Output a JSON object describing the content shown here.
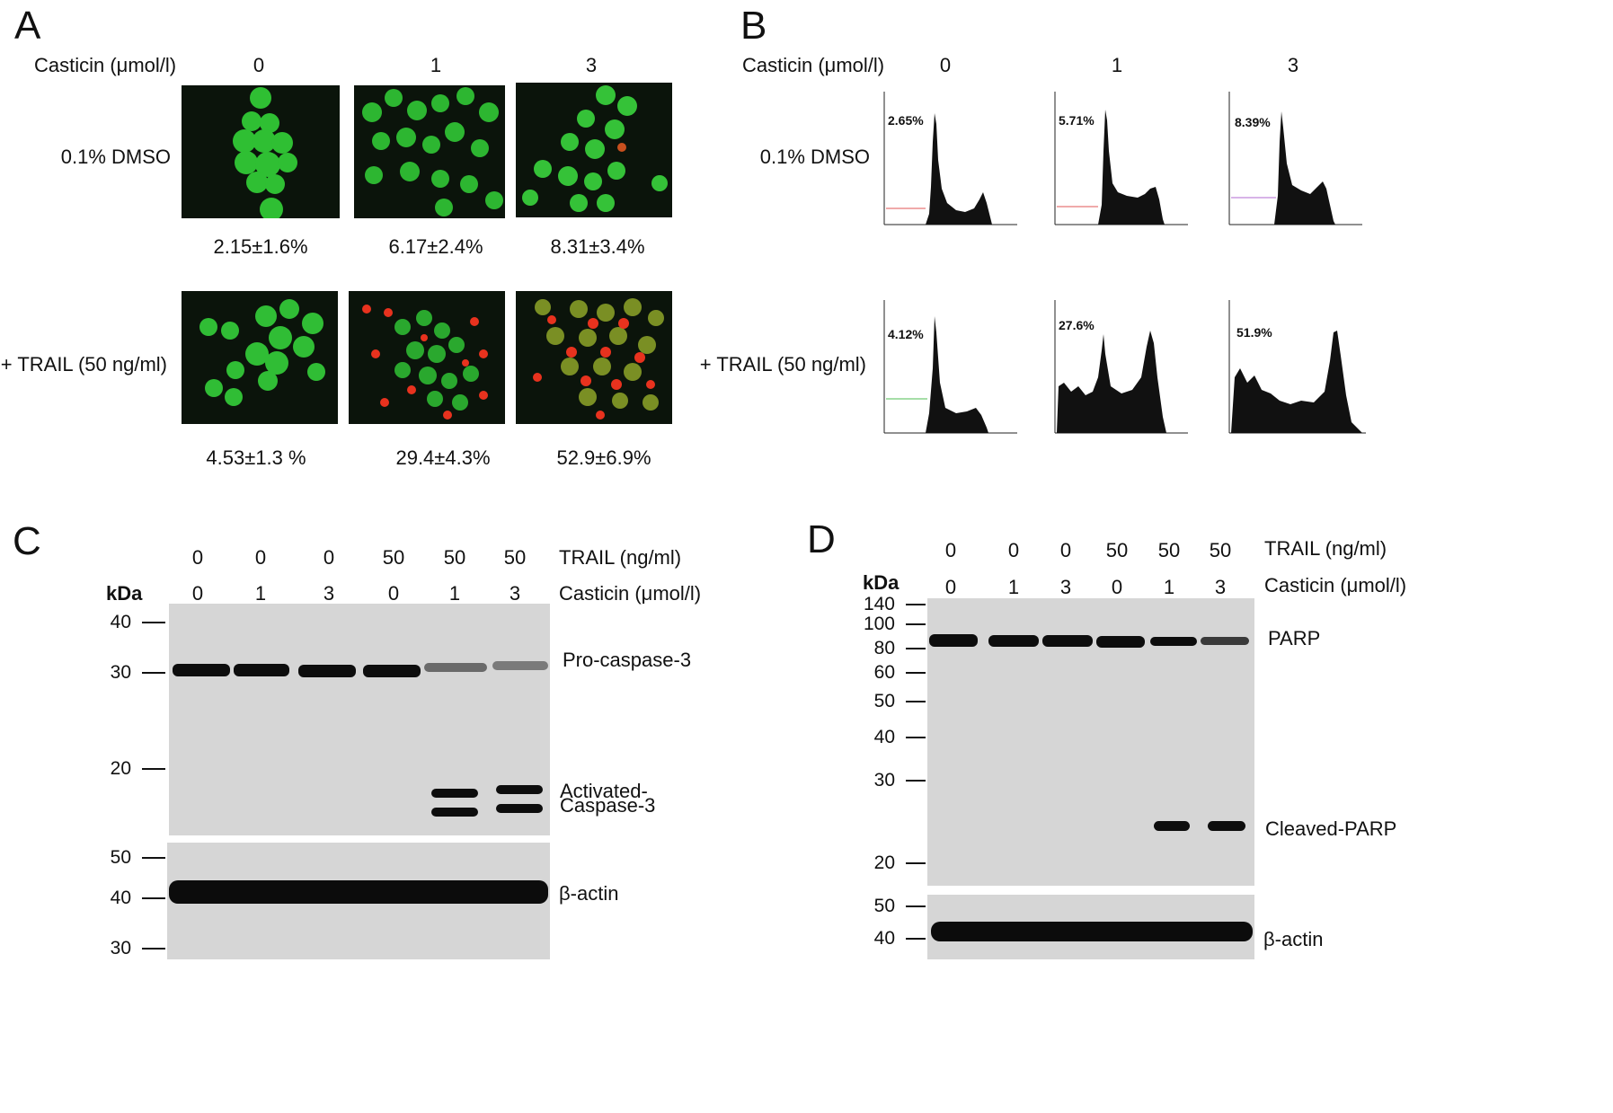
{
  "panels": {
    "a": "A",
    "b": "B",
    "c": "C",
    "d": "D"
  },
  "panel_a": {
    "dose_label": "Casticin (μmol/l)",
    "doses": [
      "0",
      "1",
      "3"
    ],
    "row_labels": [
      "0.1% DMSO",
      "+ TRAIL (50 ng/ml)"
    ],
    "dmso_values": [
      "2.15±1.6%",
      "6.17±2.4%",
      "8.31±3.4%"
    ],
    "trail_values": [
      "4.53±1.3 %",
      "29.4±4.3%",
      "52.9±6.9%"
    ]
  },
  "panel_b": {
    "dose_label": "Casticin (μmol/l)",
    "doses": [
      "0",
      "1",
      "3"
    ],
    "row_labels": [
      "0.1% DMSO",
      "+ TRAIL (50 ng/ml)"
    ],
    "dmso_pct": [
      "2.65%",
      "5.71%",
      "8.39%"
    ],
    "trail_pct": [
      "4.12%",
      "27.6%",
      "51.9%"
    ]
  },
  "panel_c": {
    "trail_values": [
      "0",
      "0",
      "0",
      "50",
      "50",
      "50"
    ],
    "trail_label": "TRAIL (ng/ml)",
    "casticin_values": [
      "0",
      "1",
      "3",
      "0",
      "1",
      "3"
    ],
    "casticin_label": "Casticin (μmol/l)",
    "kda": "kDa",
    "markers_top": [
      "40",
      "30",
      "20"
    ],
    "markers_bottom": [
      "50",
      "40",
      "30"
    ],
    "bands": [
      "Pro-caspase-3",
      "Activated-",
      "Caspase-3",
      "β-actin"
    ]
  },
  "panel_d": {
    "trail_values": [
      "0",
      "0",
      "0",
      "50",
      "50",
      "50"
    ],
    "trail_label": "TRAIL (ng/ml)",
    "casticin_values": [
      "0",
      "1",
      "3",
      "0",
      "1",
      "3"
    ],
    "casticin_label": "Casticin (μmol/l)",
    "kda": "kDa",
    "markers_top": [
      "140",
      "100",
      "80",
      "60",
      "50",
      "40",
      "30",
      "20"
    ],
    "markers_bottom": [
      "50",
      "40"
    ],
    "bands": [
      "PARP",
      "Cleaved-PARP",
      "β-actin"
    ]
  },
  "colors": {
    "live_cell": "#33c23a",
    "apoptotic_cell": "#e8321e",
    "blot_background": "#d6d6d6",
    "band": "#0d0d0d"
  }
}
